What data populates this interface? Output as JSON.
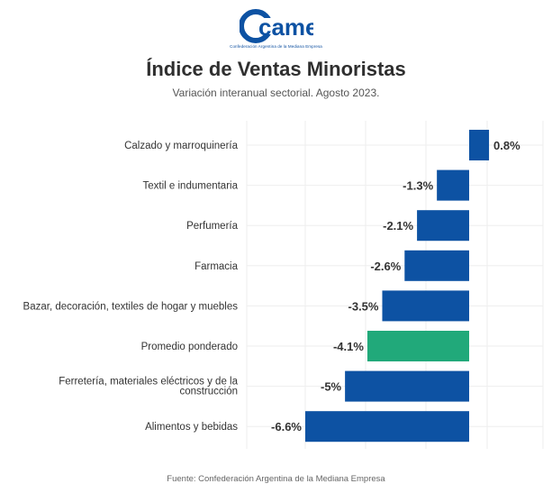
{
  "brand": {
    "logo_text": "came",
    "tagline": "Confederación Argentina de la Mediana Empresa"
  },
  "header": {
    "title": "Índice de Ventas Minoristas",
    "subtitle": "Variación interanual sectorial. Agosto 2023."
  },
  "footer": {
    "source": "Fuente: Confederación Argentina de la Mediana Empresa"
  },
  "colors": {
    "bar": "#0d52a3",
    "highlight": "#21a97a",
    "grid": "#eeeeee"
  },
  "chart_data": {
    "type": "bar",
    "orientation": "horizontal",
    "title": "Índice de Ventas Minoristas",
    "subtitle": "Variación interanual sectorial. Agosto 2023.",
    "categories": [
      "Calzado y marroquinería",
      "Textil e indumentaria",
      "Perfumería",
      "Farmacia",
      "Bazar, decoración, textiles de hogar y muebles",
      "Promedio ponderado",
      [
        "Ferretería, materiales eléctricos y de la",
        "construcción"
      ],
      "Alimentos y bebidas"
    ],
    "values": [
      0.8,
      -1.3,
      -2.1,
      -2.6,
      -3.5,
      -4.1,
      -5,
      -6.6
    ],
    "value_labels": [
      "0.8%",
      "-1.3%",
      "-2.1%",
      "-2.6%",
      "-3.5%",
      "-4.1%",
      "-5%",
      "-6.6%"
    ],
    "highlight_index": 5,
    "xlim": [
      -6.6,
      0.8
    ],
    "grid": true
  }
}
